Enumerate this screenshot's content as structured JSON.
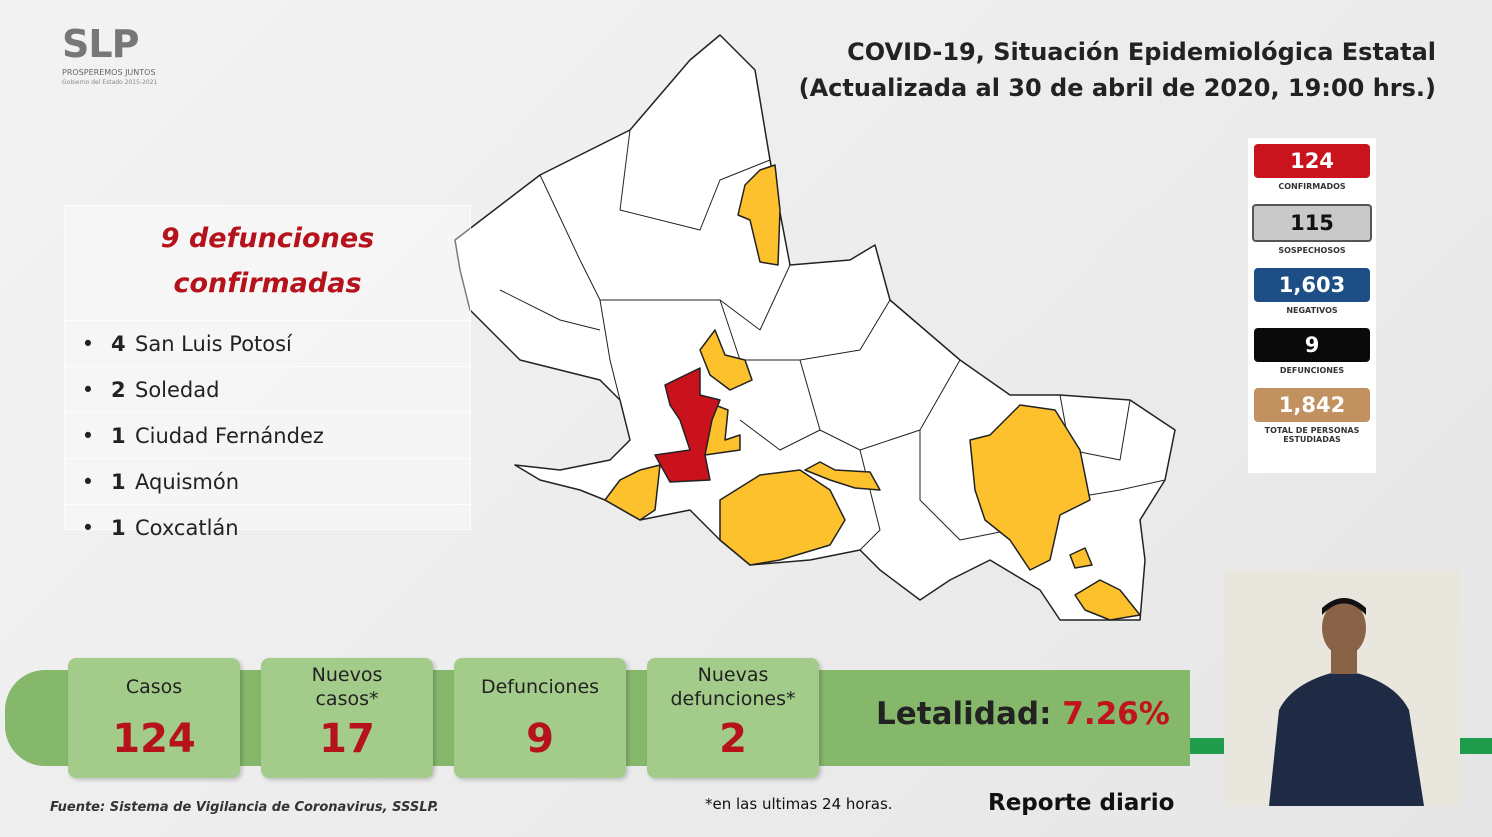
{
  "logo": {
    "mark": "SLP",
    "slogan": "PROSPEREMOS JUNTOS",
    "government": "Gobierno del Estado 2015-2021"
  },
  "header": {
    "title": "COVID-19, Situación Epidemiológica Estatal",
    "subtitle": "(Actualizada al 30 de abril de 2020, 19:00 hrs.)"
  },
  "deaths_panel": {
    "heading": [
      "9 defunciones",
      "confirmadas"
    ],
    "items": [
      {
        "count": 4,
        "municipality": "San Luis Potosí"
      },
      {
        "count": 2,
        "municipality": "Soledad"
      },
      {
        "count": 1,
        "municipality": "Ciudad Fernández"
      },
      {
        "count": 1,
        "municipality": "Aquismón"
      },
      {
        "count": 1,
        "municipality": "Coxcatlán"
      }
    ]
  },
  "summary": [
    {
      "value": 124,
      "label": "CONFIRMADOS"
    },
    {
      "value": 115,
      "label": "SOSPECHOSOS"
    },
    {
      "value": "1,603",
      "label": "NEGATIVOS"
    },
    {
      "value": 9,
      "label": "DEFUNCIONES"
    },
    {
      "value": "1,842",
      "label": "TOTAL DE PERSONAS ESTUDIADAS"
    }
  ],
  "cards": [
    {
      "label": "Casos",
      "value": 124
    },
    {
      "label": "Nuevos casos*",
      "value": 17
    },
    {
      "label": "Defunciones",
      "value": 9
    },
    {
      "label": "Nuevas defunciones*",
      "value": 2
    }
  ],
  "lethality": {
    "label": "Letalidad:",
    "value": "7.26%"
  },
  "footer": {
    "source": "Fuente: Sistema de Vigilancia de Coronavirus, SSSLP.",
    "note": "*en las ultimas 24 horas.",
    "report": "Reporte diario"
  }
}
